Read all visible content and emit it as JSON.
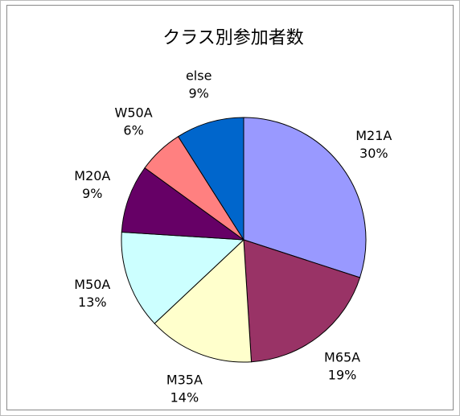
{
  "chart_data": {
    "type": "pie",
    "title": "クラス別参加者数",
    "categories": [
      "M21A",
      "M65A",
      "M35A",
      "M50A",
      "M20A",
      "W50A",
      "else"
    ],
    "values": [
      30,
      19,
      14,
      13,
      9,
      6,
      9
    ],
    "value_labels": [
      "30%",
      "19%",
      "14%",
      "13%",
      "9%",
      "6%",
      "9%"
    ],
    "colors": [
      "#9999ff",
      "#993366",
      "#ffffcc",
      "#ccffff",
      "#660066",
      "#ff8080",
      "#0066cc"
    ]
  }
}
